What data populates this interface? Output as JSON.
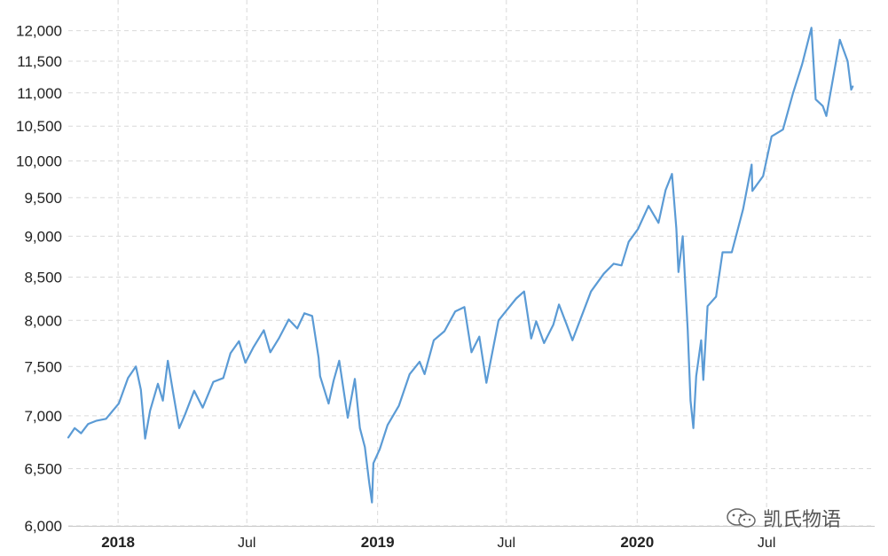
{
  "chart_data": {
    "type": "line",
    "title": "",
    "xlabel": "",
    "ylabel": "",
    "yscale": "log",
    "ylim": [
      6000,
      12100
    ],
    "yticks": [
      6000,
      6500,
      7000,
      7500,
      8000,
      8500,
      9000,
      9500,
      10000,
      10500,
      11000,
      11500,
      12000
    ],
    "ytick_labels": [
      "6,000",
      "6,500",
      "7,000",
      "7,500",
      "8,000",
      "8,500",
      "9,000",
      "9,500",
      "10,000",
      "10,500",
      "11,000",
      "11,500",
      "12,000"
    ],
    "xlim": [
      "2017-10-23",
      "2020-11-30"
    ],
    "xticks": [
      {
        "label": "2018",
        "date": "2018-01-01",
        "bold": true
      },
      {
        "label": "Jul",
        "date": "2018-07-01",
        "bold": false
      },
      {
        "label": "2019",
        "date": "2019-01-01",
        "bold": true
      },
      {
        "label": "Jul",
        "date": "2019-07-01",
        "bold": false
      },
      {
        "label": "2020",
        "date": "2020-01-01",
        "bold": true
      },
      {
        "label": "Jul",
        "date": "2020-07-01",
        "bold": false
      }
    ],
    "grid": true,
    "series": [
      {
        "color": "#5b9bd5",
        "points": [
          [
            "2017-10-23",
            6790
          ],
          [
            "2017-11-01",
            6880
          ],
          [
            "2017-11-10",
            6830
          ],
          [
            "2017-11-20",
            6920
          ],
          [
            "2017-12-01",
            6950
          ],
          [
            "2017-12-15",
            6970
          ],
          [
            "2018-01-02",
            7120
          ],
          [
            "2018-01-15",
            7380
          ],
          [
            "2018-01-26",
            7500
          ],
          [
            "2018-02-02",
            7260
          ],
          [
            "2018-02-08",
            6780
          ],
          [
            "2018-02-15",
            7050
          ],
          [
            "2018-02-26",
            7320
          ],
          [
            "2018-03-05",
            7150
          ],
          [
            "2018-03-12",
            7560
          ],
          [
            "2018-03-19",
            7250
          ],
          [
            "2018-03-28",
            6880
          ],
          [
            "2018-04-05",
            7010
          ],
          [
            "2018-04-18",
            7250
          ],
          [
            "2018-04-30",
            7080
          ],
          [
            "2018-05-15",
            7340
          ],
          [
            "2018-05-29",
            7380
          ],
          [
            "2018-06-08",
            7640
          ],
          [
            "2018-06-20",
            7770
          ],
          [
            "2018-06-29",
            7540
          ],
          [
            "2018-07-10",
            7700
          ],
          [
            "2018-07-25",
            7890
          ],
          [
            "2018-08-03",
            7650
          ],
          [
            "2018-08-15",
            7800
          ],
          [
            "2018-08-29",
            8010
          ],
          [
            "2018-09-10",
            7910
          ],
          [
            "2018-09-20",
            8080
          ],
          [
            "2018-10-01",
            8050
          ],
          [
            "2018-10-10",
            7590
          ],
          [
            "2018-10-12",
            7400
          ],
          [
            "2018-10-24",
            7120
          ],
          [
            "2018-10-31",
            7350
          ],
          [
            "2018-11-08",
            7560
          ],
          [
            "2018-11-20",
            6980
          ],
          [
            "2018-11-30",
            7370
          ],
          [
            "2018-12-07",
            6880
          ],
          [
            "2018-12-14",
            6700
          ],
          [
            "2018-12-20",
            6380
          ],
          [
            "2018-12-24",
            6200
          ],
          [
            "2018-12-26",
            6550
          ],
          [
            "2019-01-04",
            6680
          ],
          [
            "2019-01-15",
            6910
          ],
          [
            "2019-01-31",
            7100
          ],
          [
            "2019-02-15",
            7420
          ],
          [
            "2019-03-01",
            7550
          ],
          [
            "2019-03-08",
            7420
          ],
          [
            "2019-03-21",
            7780
          ],
          [
            "2019-04-05",
            7880
          ],
          [
            "2019-04-20",
            8100
          ],
          [
            "2019-05-03",
            8150
          ],
          [
            "2019-05-13",
            7650
          ],
          [
            "2019-05-24",
            7820
          ],
          [
            "2019-06-03",
            7330
          ],
          [
            "2019-06-20",
            8000
          ],
          [
            "2019-07-01",
            8110
          ],
          [
            "2019-07-15",
            8250
          ],
          [
            "2019-07-26",
            8330
          ],
          [
            "2019-08-05",
            7800
          ],
          [
            "2019-08-12",
            7990
          ],
          [
            "2019-08-23",
            7750
          ],
          [
            "2019-09-05",
            7950
          ],
          [
            "2019-09-13",
            8180
          ],
          [
            "2019-09-24",
            7950
          ],
          [
            "2019-10-02",
            7780
          ],
          [
            "2019-10-15",
            8050
          ],
          [
            "2019-10-28",
            8330
          ],
          [
            "2019-11-15",
            8540
          ],
          [
            "2019-11-29",
            8660
          ],
          [
            "2019-12-10",
            8640
          ],
          [
            "2019-12-20",
            8930
          ],
          [
            "2020-01-02",
            9090
          ],
          [
            "2020-01-17",
            9390
          ],
          [
            "2020-01-31",
            9170
          ],
          [
            "2020-02-10",
            9600
          ],
          [
            "2020-02-19",
            9820
          ],
          [
            "2020-02-25",
            9100
          ],
          [
            "2020-02-28",
            8560
          ],
          [
            "2020-03-05",
            9000
          ],
          [
            "2020-03-12",
            7900
          ],
          [
            "2020-03-16",
            7150
          ],
          [
            "2020-03-20",
            6880
          ],
          [
            "2020-03-24",
            7400
          ],
          [
            "2020-03-31",
            7780
          ],
          [
            "2020-04-03",
            7360
          ],
          [
            "2020-04-09",
            8160
          ],
          [
            "2020-04-21",
            8270
          ],
          [
            "2020-04-30",
            8800
          ],
          [
            "2020-05-13",
            8800
          ],
          [
            "2020-05-29",
            9350
          ],
          [
            "2020-06-10",
            9950
          ],
          [
            "2020-06-11",
            9590
          ],
          [
            "2020-06-26",
            9790
          ],
          [
            "2020-07-08",
            10350
          ],
          [
            "2020-07-24",
            10450
          ],
          [
            "2020-08-07",
            10990
          ],
          [
            "2020-08-20",
            11450
          ],
          [
            "2020-09-02",
            12050
          ],
          [
            "2020-09-08",
            10900
          ],
          [
            "2020-09-18",
            10800
          ],
          [
            "2020-09-23",
            10650
          ],
          [
            "2020-10-02",
            11200
          ],
          [
            "2020-10-12",
            11850
          ],
          [
            "2020-10-23",
            11500
          ],
          [
            "2020-10-28",
            11050
          ],
          [
            "2020-10-30",
            11100
          ]
        ]
      }
    ]
  },
  "watermark": {
    "text": "凯氏物语",
    "icon": "wechat-icon"
  }
}
